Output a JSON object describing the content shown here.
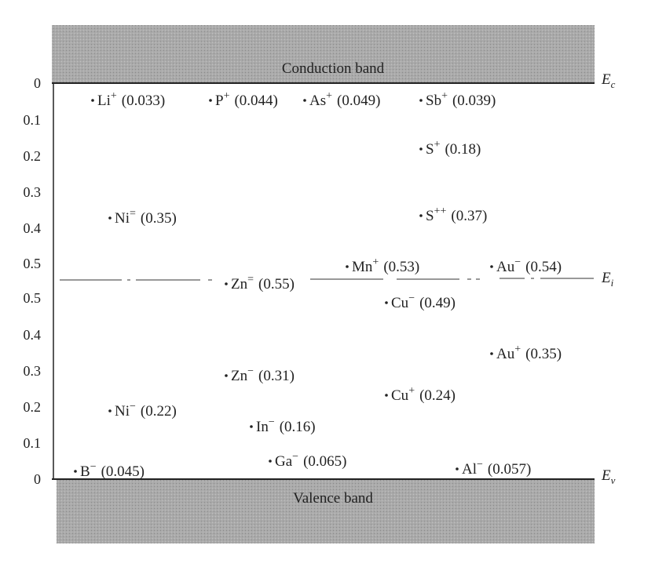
{
  "bands": {
    "conduction": "Conduction band",
    "valence": "Valence band"
  },
  "levels": {
    "Ec": {
      "symbol": "E",
      "subscript": "c"
    },
    "Ei": {
      "symbol": "E",
      "subscript": "i"
    },
    "Ev": {
      "symbol": "E",
      "subscript": "v"
    }
  },
  "upper_scale": [
    "0",
    "0.1",
    "0.2",
    "0.3",
    "0.4",
    "0.5"
  ],
  "lower_scale": [
    "0.5",
    "0.4",
    "0.3",
    "0.2",
    "0.1",
    "0"
  ],
  "impurities": [
    {
      "symbol": "Li",
      "charge": "+",
      "energy": "(0.033)"
    },
    {
      "symbol": "P",
      "charge": "+",
      "energy": "(0.044)"
    },
    {
      "symbol": "As",
      "charge": "+",
      "energy": "(0.049)"
    },
    {
      "symbol": "Sb",
      "charge": "+",
      "energy": "(0.039)"
    },
    {
      "symbol": "S",
      "charge": "+",
      "energy": "(0.18)"
    },
    {
      "symbol": "Ni",
      "charge": "=",
      "energy": "(0.35)"
    },
    {
      "symbol": "S",
      "charge": "++",
      "energy": "(0.37)"
    },
    {
      "symbol": "Mn",
      "charge": "+",
      "energy": "(0.53)"
    },
    {
      "symbol": "Au",
      "charge": "−",
      "energy": "(0.54)"
    },
    {
      "symbol": "Zn",
      "charge": "=",
      "energy": "(0.55)"
    },
    {
      "symbol": "Cu",
      "charge": "−",
      "energy": "(0.49)"
    },
    {
      "symbol": "Au",
      "charge": "+",
      "energy": "(0.35)"
    },
    {
      "symbol": "Zn",
      "charge": "−",
      "energy": "(0.31)"
    },
    {
      "symbol": "Cu",
      "charge": "+",
      "energy": "(0.24)"
    },
    {
      "symbol": "Ni",
      "charge": "−",
      "energy": "(0.22)"
    },
    {
      "symbol": "In",
      "charge": "−",
      "energy": "(0.16)"
    },
    {
      "symbol": "Ga",
      "charge": "−",
      "energy": "(0.065)"
    },
    {
      "symbol": "B",
      "charge": "−",
      "energy": "(0.045)"
    },
    {
      "symbol": "Al",
      "charge": "−",
      "energy": "(0.057)"
    }
  ]
}
